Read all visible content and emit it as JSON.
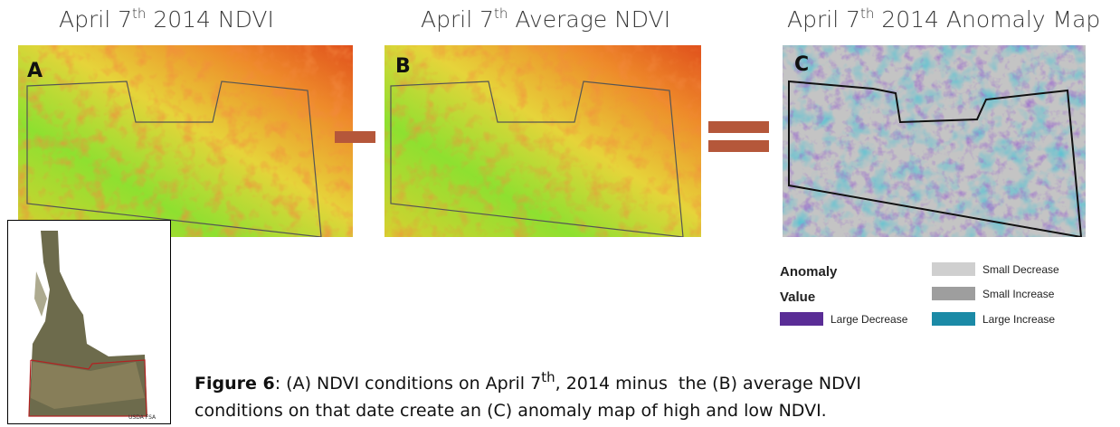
{
  "panels": [
    {
      "title": {
        "pre": "April 7",
        "sup": "th",
        "post": " 2014 NDVI"
      },
      "letter": "A"
    },
    {
      "title": {
        "pre": "April 7",
        "sup": "th",
        "post": " Average NDVI"
      },
      "letter": "B"
    },
    {
      "title": {
        "pre": "April 7",
        "sup": "th",
        "post": " 2014 Anomaly Map"
      },
      "letter": "C"
    }
  ],
  "legend": {
    "title": [
      "Anomaly",
      "Value"
    ],
    "items": [
      {
        "label": "Small Decrease",
        "color": "#cfcfcf"
      },
      {
        "label": "Small Increase",
        "color": "#9e9e9e"
      },
      {
        "label": "Large Decrease",
        "color": "#5a2d96"
      },
      {
        "label": "Large Increase",
        "color": "#1b8aa6"
      }
    ]
  },
  "inset": {
    "credit": "USDA FSA"
  },
  "caption": {
    "label": "Figure 6",
    "line_1": ": (A) NDVI conditions on April 7",
    "sup": "th",
    "line_1_end": ", 2014 minus  the (B) average NDVI",
    "line_2": "conditions on that date create an (C) anomaly map of high and low NDVI."
  }
}
